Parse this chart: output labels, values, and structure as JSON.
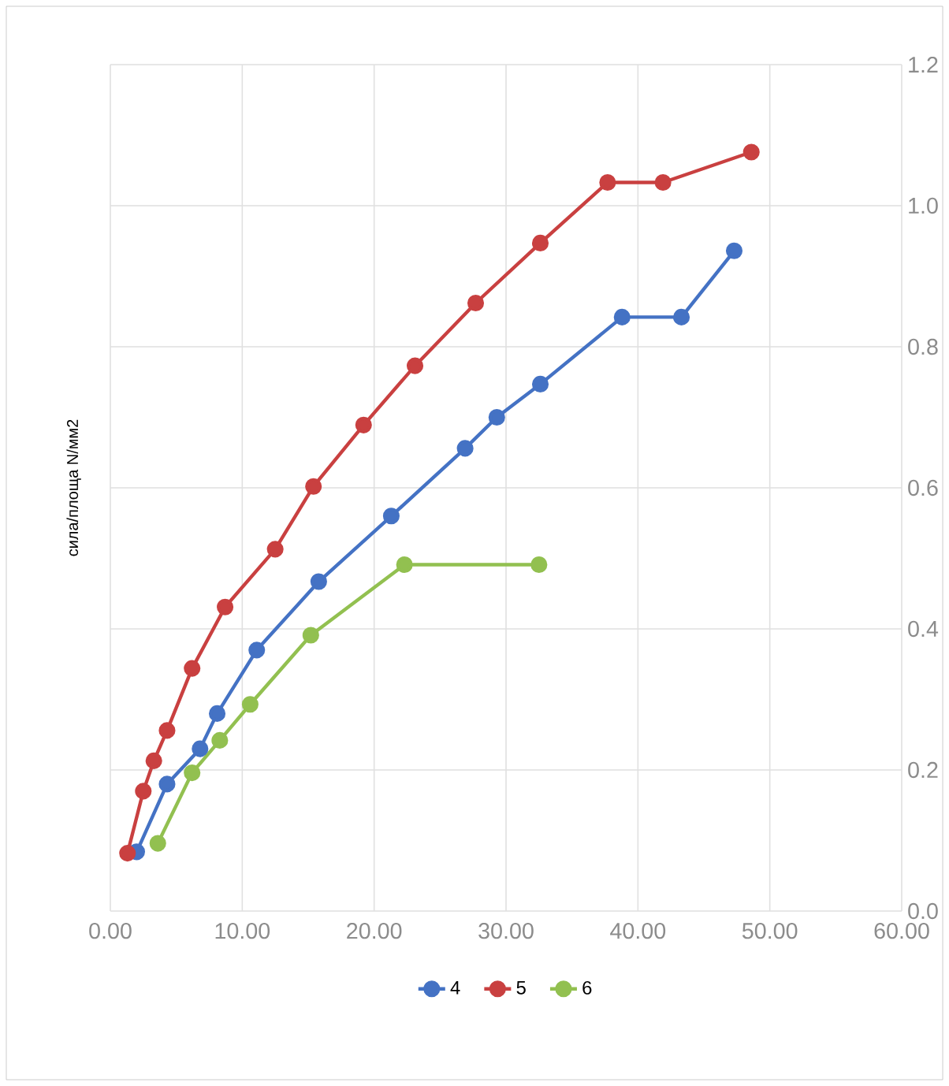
{
  "chart_data": {
    "type": "line",
    "ylabel": "сила/площа N/мм2",
    "xlim": [
      0,
      60
    ],
    "xticks": [
      {
        "value": 0,
        "label": "0.00"
      },
      {
        "value": 10,
        "label": "10.00"
      },
      {
        "value": 20,
        "label": "20.00"
      },
      {
        "value": 30,
        "label": "30.00"
      },
      {
        "value": 40,
        "label": "40.00"
      },
      {
        "value": 50,
        "label": "50.00"
      },
      {
        "value": 60,
        "label": "60.00"
      }
    ],
    "ylim": [
      0,
      1.2
    ],
    "yticks": [
      {
        "value": 0,
        "label": "0.0"
      },
      {
        "value": 0.2,
        "label": "0.2"
      },
      {
        "value": 0.4,
        "label": "0.4"
      },
      {
        "value": 0.6,
        "label": "0.6"
      },
      {
        "value": 0.8,
        "label": "0.8"
      },
      {
        "value": 1.0,
        "label": "1.0"
      },
      {
        "value": 1.2,
        "label": "1.2"
      }
    ],
    "grid": true,
    "legend": "bottom",
    "marker": "circle",
    "line_style": "solid",
    "series": [
      {
        "name": "4",
        "color": "#4472c4",
        "x": [
          2.0,
          4.3,
          6.8,
          8.1,
          11.1,
          15.8,
          21.3,
          26.9,
          29.3,
          32.6,
          38.8,
          43.3,
          47.3
        ],
        "values": [
          0.084,
          0.18,
          0.23,
          0.28,
          0.37,
          0.467,
          0.56,
          0.656,
          0.7,
          0.747,
          0.842,
          0.842,
          0.936
        ]
      },
      {
        "name": "5",
        "color": "#c94040",
        "x": [
          1.3,
          2.5,
          3.3,
          4.3,
          6.2,
          8.7,
          12.5,
          15.4,
          19.2,
          23.1,
          27.7,
          32.6,
          37.7,
          41.9,
          48.6
        ],
        "values": [
          0.082,
          0.17,
          0.213,
          0.256,
          0.344,
          0.431,
          0.513,
          0.602,
          0.689,
          0.773,
          0.862,
          0.947,
          1.033,
          1.033,
          1.076
        ]
      },
      {
        "name": "6",
        "color": "#92c050",
        "x": [
          3.6,
          6.2,
          8.3,
          10.6,
          15.2,
          22.3,
          32.5
        ],
        "values": [
          0.096,
          0.196,
          0.242,
          0.293,
          0.391,
          0.491,
          0.491
        ]
      }
    ]
  }
}
